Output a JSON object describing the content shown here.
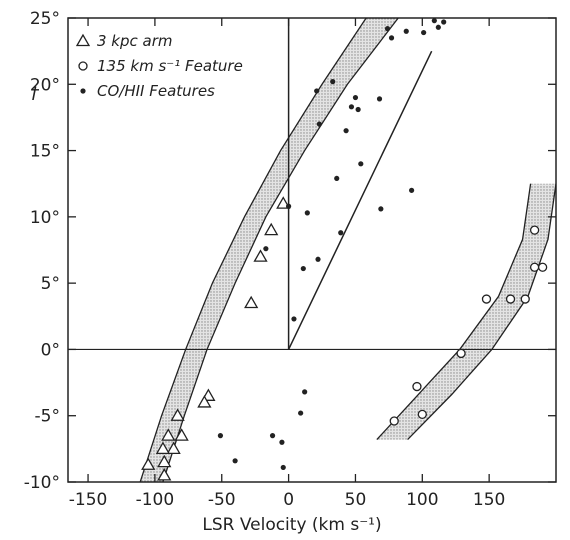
{
  "chart_data": {
    "type": "scatter",
    "xlabel": "LSR Velocity (km s⁻¹)",
    "ylabel": "l",
    "xlim": [
      -165,
      200
    ],
    "ylim": [
      -10,
      25
    ],
    "x_ticks": [
      -150,
      -100,
      -50,
      0,
      50,
      100,
      150
    ],
    "x_tick_labels": [
      "-150",
      "-100",
      "-50",
      "0",
      "50",
      "100",
      "150"
    ],
    "y_ticks": [
      -10,
      -5,
      0,
      5,
      10,
      15,
      20,
      25
    ],
    "y_tick_labels": [
      "-10°",
      "-5°",
      "0°",
      "5°",
      "10°",
      "15°",
      "20°",
      "25°"
    ],
    "grid": false,
    "legend_position": "top-left",
    "colors": {
      "ink": "#222222",
      "band_fill": "#cfcfcf",
      "background": "#ffffff"
    },
    "series": [
      {
        "name": "3 kpc arm",
        "marker": "triangle",
        "points": [
          [
            -4,
            11
          ],
          [
            -13,
            9
          ],
          [
            -21,
            7
          ],
          [
            -28,
            3.5
          ],
          [
            -60,
            -3.5
          ],
          [
            -63,
            -4
          ],
          [
            -83,
            -5
          ],
          [
            -80,
            -6.5
          ],
          [
            -90,
            -6.5
          ],
          [
            -86,
            -7.5
          ],
          [
            -94,
            -7.5
          ],
          [
            -93,
            -8.5
          ],
          [
            -105,
            -8.7
          ],
          [
            -93,
            -9.5
          ]
        ]
      },
      {
        "name": "135 km s⁻¹ Feature",
        "marker": "circle",
        "points": [
          [
            184,
            9
          ],
          [
            184,
            6.2
          ],
          [
            190,
            6.2
          ],
          [
            148,
            3.8
          ],
          [
            166,
            3.8
          ],
          [
            177,
            3.8
          ],
          [
            129,
            -0.3
          ],
          [
            96,
            -2.8
          ],
          [
            100,
            -4.9
          ],
          [
            79,
            -5.4
          ]
        ]
      },
      {
        "name": "CO/HΙΙ Features",
        "marker": "dot",
        "points": [
          [
            74,
            24.2
          ],
          [
            77,
            23.5
          ],
          [
            88,
            24
          ],
          [
            101,
            23.9
          ],
          [
            109,
            24.8
          ],
          [
            116,
            24.7
          ],
          [
            112,
            24.3
          ],
          [
            33,
            20.2
          ],
          [
            21,
            19.5
          ],
          [
            50,
            19
          ],
          [
            47,
            18.3
          ],
          [
            52,
            18.1
          ],
          [
            68,
            18.9
          ],
          [
            23,
            17
          ],
          [
            43,
            16.5
          ],
          [
            54,
            14
          ],
          [
            36,
            12.9
          ],
          [
            92,
            12
          ],
          [
            0,
            10.8
          ],
          [
            14,
            10.3
          ],
          [
            69,
            10.6
          ],
          [
            39,
            8.8
          ],
          [
            -17,
            7.6
          ],
          [
            22,
            6.8
          ],
          [
            11,
            6.1
          ],
          [
            4,
            2.3
          ],
          [
            12,
            -3.2
          ],
          [
            9,
            -4.8
          ],
          [
            -51,
            -6.5
          ],
          [
            -12,
            -6.5
          ],
          [
            -5,
            -7
          ],
          [
            -40,
            -8.4
          ],
          [
            -4,
            -8.9
          ]
        ]
      }
    ],
    "bands": [
      {
        "left": [
          [
            -111,
            -10
          ],
          [
            -95,
            -5
          ],
          [
            -77,
            0
          ],
          [
            -57,
            5
          ],
          [
            -33,
            10
          ],
          [
            -6,
            15
          ],
          [
            25,
            20
          ],
          [
            58,
            25
          ]
        ],
        "right": [
          [
            -94,
            -10
          ],
          [
            -78,
            -5
          ],
          [
            -61,
            0
          ],
          [
            -40,
            5
          ],
          [
            -17,
            10
          ],
          [
            12,
            15
          ],
          [
            44,
            20
          ],
          [
            82,
            25
          ]
        ]
      },
      {
        "left": [
          [
            66,
            -6.8
          ],
          [
            97,
            -3.4
          ],
          [
            128,
            0
          ],
          [
            157,
            4
          ],
          [
            175,
            8.3
          ],
          [
            181,
            12.5
          ]
        ],
        "right": [
          [
            89,
            -6.8
          ],
          [
            122,
            -3.4
          ],
          [
            152,
            0
          ],
          [
            179,
            4
          ],
          [
            194,
            8.3
          ],
          [
            200,
            12.5
          ]
        ]
      }
    ],
    "lines": [
      [
        [
          0,
          0
        ],
        [
          107,
          22.5
        ]
      ],
      [
        [
          0,
          0
        ],
        [
          0,
          25
        ]
      ]
    ]
  }
}
